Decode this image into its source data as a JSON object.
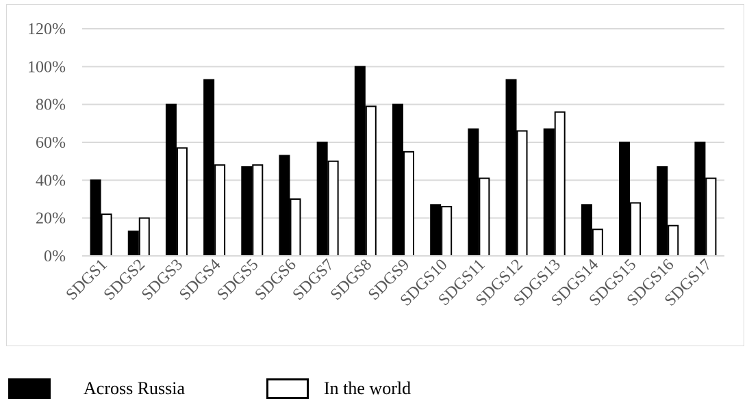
{
  "chart_data": {
    "type": "bar",
    "categories": [
      "SDGS1",
      "SDGS2",
      "SDGS3",
      "SDGS4",
      "SDGS5",
      "SDGS6",
      "SDGS7",
      "SDGS8",
      "SDGS9",
      "SDGS10",
      "SDGS11",
      "SDGS12",
      "SDGS13",
      "SDGS14",
      "SDGS15",
      "SDGS16",
      "SDGS17"
    ],
    "series": [
      {
        "name": "Across Russia",
        "color": "#000000",
        "values": [
          40,
          13,
          80,
          93,
          47,
          53,
          60,
          100,
          80,
          27,
          67,
          93,
          67,
          27,
          60,
          47,
          60
        ]
      },
      {
        "name": "In the world",
        "color": "#ffffff",
        "values": [
          22,
          20,
          57,
          48,
          48,
          30,
          50,
          79,
          55,
          26,
          41,
          66,
          76,
          14,
          28,
          16,
          41
        ]
      }
    ],
    "yticks": [
      "0%",
      "20%",
      "40%",
      "60%",
      "80%",
      "100%",
      "120%"
    ],
    "ylim": [
      0,
      120
    ],
    "grid": true,
    "legend_position": "bottom-left"
  }
}
